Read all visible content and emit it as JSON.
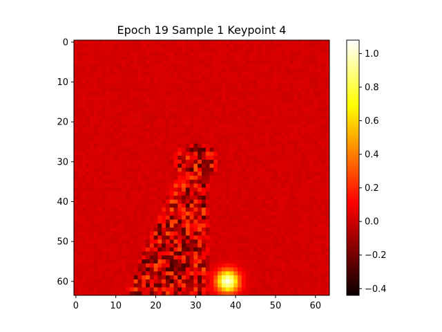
{
  "chart_data": {
    "type": "heatmap",
    "title": "Epoch 19 Sample 1 Keypoint 4",
    "xlabel": "",
    "ylabel": "",
    "grid_size": [
      64,
      64
    ],
    "xlim": [
      -0.5,
      63.5
    ],
    "ylim": [
      63.5,
      -0.5
    ],
    "x_ticks": [
      0,
      10,
      20,
      30,
      40,
      50,
      60
    ],
    "y_ticks": [
      0,
      10,
      20,
      30,
      40,
      50,
      60
    ],
    "colormap": "hot",
    "value_range": [
      -0.44,
      1.08
    ],
    "background_value": 0.0,
    "colorbar": {
      "ticks": [
        -0.4,
        -0.2,
        0.0,
        0.2,
        0.4,
        0.6,
        0.8,
        1.0
      ],
      "tick_labels": [
        "−0.4",
        "−0.2",
        "0.0",
        "0.2",
        "0.4",
        "0.6",
        "0.8",
        "1.0"
      ]
    },
    "features": {
      "peak": {
        "x": 38,
        "y": 60,
        "value": 1.05,
        "sigma": 2.0
      },
      "noise_region": "figure-shaped noise column around x 20-38, y 25-64, values roughly -0.35 to 0.35"
    }
  },
  "colors": {
    "axis": "#000000",
    "background": "#ffffff"
  }
}
